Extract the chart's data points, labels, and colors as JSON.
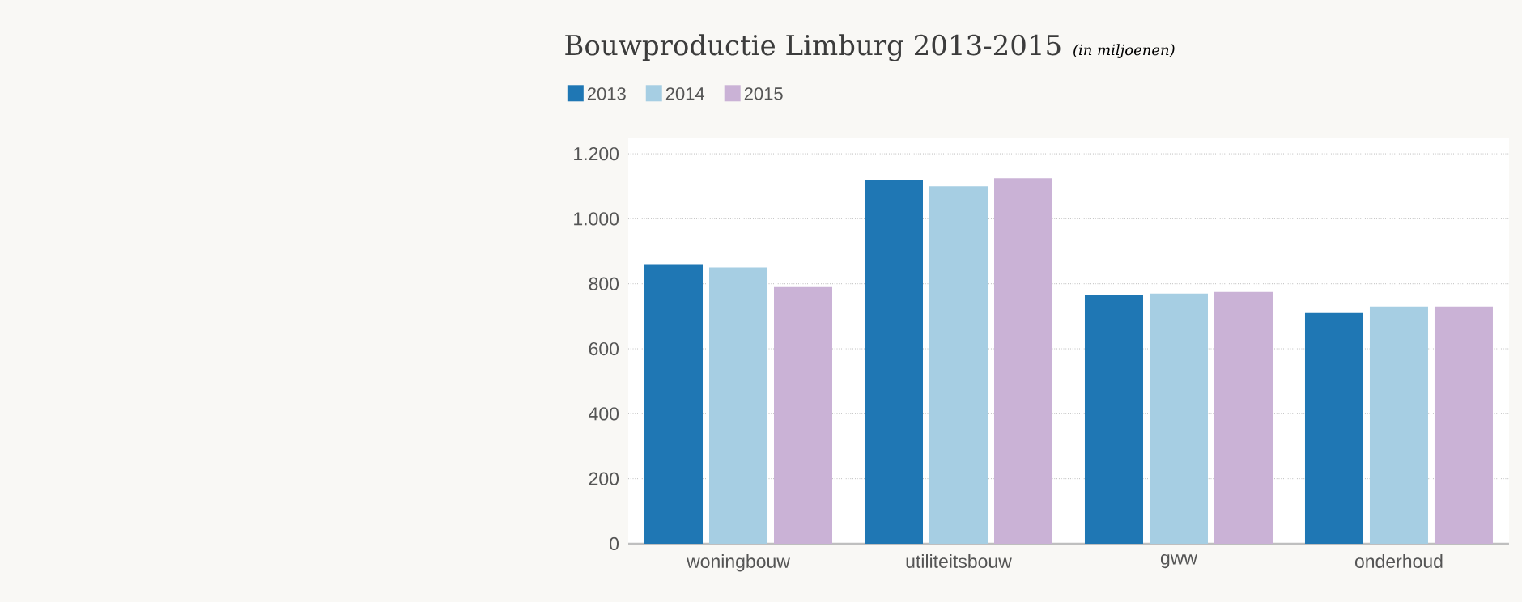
{
  "chart_data": {
    "type": "bar",
    "title": "Bouwproductie Limburg 2013-2015",
    "subtitle": "(in miljoenen)",
    "categories": [
      "woningbouw",
      "utiliteitsbouw",
      "gww",
      "onderhoud"
    ],
    "series": [
      {
        "name": "2013",
        "color": "#1f77b4",
        "values": [
          860,
          1120,
          765,
          710
        ]
      },
      {
        "name": "2014",
        "color": "#a6cee3",
        "values": [
          850,
          1100,
          770,
          730
        ]
      },
      {
        "name": "2015",
        "color": "#cab2d6",
        "values": [
          790,
          1125,
          775,
          730
        ]
      }
    ],
    "ylim": [
      0,
      1250
    ],
    "yticks": [
      0,
      200,
      400,
      600,
      800,
      {
        "value": 1000,
        "label": "1.000"
      },
      {
        "value": 1200,
        "label": "1.200"
      }
    ],
    "grid": "y",
    "legend": "top left"
  }
}
